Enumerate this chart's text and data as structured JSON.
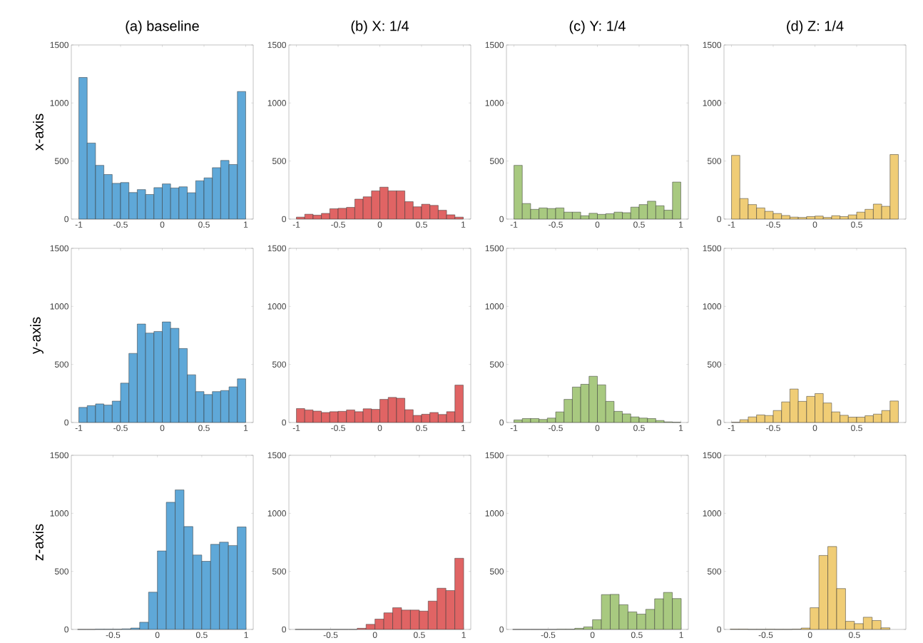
{
  "chart_data": [
    {
      "type": "histogram",
      "title": "(a) baseline",
      "ylabel": "x-axis",
      "color": "#5fa8d8",
      "bins": [
        -1,
        -0.9,
        -0.8,
        -0.7,
        -0.6,
        -0.5,
        -0.4,
        -0.3,
        -0.2,
        -0.1,
        0,
        0.1,
        0.2,
        0.3,
        0.4,
        0.5,
        0.6,
        0.7,
        0.8,
        0.9,
        1
      ],
      "values": [
        1220,
        655,
        463,
        384,
        308,
        315,
        229,
        254,
        212,
        271,
        303,
        268,
        278,
        227,
        330,
        355,
        443,
        505,
        470,
        1099
      ],
      "xlim": [
        -1.09,
        1.09
      ],
      "ylim": [
        0,
        1500
      ],
      "xticks": [
        -1,
        -0.5,
        0,
        0.5,
        1
      ],
      "yticks": [
        0,
        500,
        1000,
        1500
      ]
    },
    {
      "type": "histogram",
      "title": "(b) X: 1/4",
      "color": "#e06464",
      "bins": [
        -1,
        -0.9,
        -0.8,
        -0.7,
        -0.6,
        -0.5,
        -0.4,
        -0.3,
        -0.2,
        -0.1,
        0,
        0.1,
        0.2,
        0.3,
        0.4,
        0.5,
        0.6,
        0.7,
        0.8,
        0.9,
        1
      ],
      "values": [
        17,
        42,
        34,
        49,
        89,
        93,
        101,
        172,
        192,
        243,
        275,
        243,
        243,
        150,
        106,
        128,
        118,
        76,
        37,
        17
      ],
      "xlim": [
        -1.09,
        1.09
      ],
      "ylim": [
        0,
        1500
      ],
      "xticks": [
        -1,
        -0.5,
        0,
        0.5,
        1
      ],
      "yticks": [
        0,
        500,
        1000,
        1500
      ]
    },
    {
      "type": "histogram",
      "title": "(c) Y: 1/4",
      "color": "#a8c980",
      "bins": [
        -1,
        -0.9,
        -0.8,
        -0.7,
        -0.6,
        -0.5,
        -0.4,
        -0.3,
        -0.2,
        -0.1,
        0,
        0.1,
        0.2,
        0.3,
        0.4,
        0.5,
        0.6,
        0.7,
        0.8,
        0.9,
        1
      ],
      "values": [
        463,
        134,
        84,
        96,
        91,
        96,
        60,
        60,
        29,
        50,
        41,
        46,
        60,
        55,
        103,
        125,
        154,
        115,
        77,
        319
      ],
      "xlim": [
        -1.09,
        1.09
      ],
      "ylim": [
        0,
        1500
      ],
      "xticks": [
        -1,
        -0.5,
        0,
        0.5,
        1
      ],
      "yticks": [
        0,
        500,
        1000,
        1500
      ]
    },
    {
      "type": "histogram",
      "title": "(d) Z: 1/4",
      "color": "#f0cd76",
      "bins": [
        -1,
        -0.9,
        -0.8,
        -0.7,
        -0.6,
        -0.5,
        -0.4,
        -0.3,
        -0.2,
        -0.1,
        0,
        0.1,
        0.2,
        0.3,
        0.4,
        0.5,
        0.6,
        0.7,
        0.8,
        0.9,
        1
      ],
      "values": [
        549,
        177,
        125,
        96,
        67,
        48,
        31,
        17,
        14,
        22,
        26,
        14,
        29,
        22,
        36,
        60,
        84,
        129,
        110,
        556
      ],
      "xlim": [
        -1.09,
        1.09
      ],
      "ylim": [
        0,
        1500
      ],
      "xticks": [
        -1,
        -0.5,
        0,
        0.5
      ],
      "yticks": [
        0,
        500,
        1000,
        1500
      ]
    },
    {
      "type": "histogram",
      "ylabel": "y-axis",
      "color": "#5fa8d8",
      "bins": [
        -1,
        -0.9,
        -0.8,
        -0.7,
        -0.6,
        -0.5,
        -0.4,
        -0.3,
        -0.2,
        -0.1,
        0,
        0.1,
        0.2,
        0.3,
        0.4,
        0.5,
        0.6,
        0.7,
        0.8,
        0.9,
        1
      ],
      "values": [
        130,
        145,
        160,
        150,
        184,
        339,
        595,
        848,
        770,
        784,
        866,
        811,
        637,
        411,
        266,
        241,
        266,
        275,
        307,
        376
      ],
      "xlim": [
        -1.09,
        1.09
      ],
      "ylim": [
        0,
        1500
      ],
      "xticks": [
        -1,
        -0.5,
        0,
        0.5,
        1
      ],
      "yticks": [
        0,
        500,
        1000,
        1500
      ]
    },
    {
      "type": "histogram",
      "color": "#e06464",
      "bins": [
        -1,
        -0.9,
        -0.8,
        -0.7,
        -0.6,
        -0.5,
        -0.4,
        -0.3,
        -0.2,
        -0.1,
        0,
        0.1,
        0.2,
        0.3,
        0.4,
        0.5,
        0.6,
        0.7,
        0.8,
        0.9,
        1
      ],
      "values": [
        120,
        108,
        98,
        86,
        93,
        96,
        108,
        93,
        118,
        113,
        199,
        216,
        209,
        110,
        61,
        71,
        86,
        69,
        93,
        322
      ],
      "xlim": [
        -1.09,
        1.09
      ],
      "ylim": [
        0,
        1500
      ],
      "xticks": [
        -1,
        -0.5,
        0,
        0.5,
        1
      ],
      "yticks": [
        0,
        500,
        1000,
        1500
      ]
    },
    {
      "type": "histogram",
      "color": "#a8c980",
      "bins": [
        -1,
        -0.9,
        -0.8,
        -0.7,
        -0.6,
        -0.5,
        -0.4,
        -0.3,
        -0.2,
        -0.1,
        0,
        0.1,
        0.2,
        0.3,
        0.4,
        0.5,
        0.6,
        0.7,
        0.8,
        0.9,
        1
      ],
      "values": [
        22,
        34,
        34,
        26,
        38,
        91,
        199,
        305,
        329,
        398,
        324,
        182,
        96,
        74,
        48,
        38,
        34,
        17,
        5,
        2
      ],
      "xlim": [
        -1.09,
        1.09
      ],
      "ylim": [
        0,
        1500
      ],
      "xticks": [
        -1,
        -0.5,
        0,
        0.5,
        1
      ],
      "yticks": [
        0,
        500,
        1000,
        1500
      ]
    },
    {
      "type": "histogram",
      "color": "#f0cd76",
      "bins": [
        -1,
        -0.9,
        -0.8,
        -0.7,
        -0.6,
        -0.5,
        -0.4,
        -0.3,
        -0.2,
        -0.1,
        0,
        0.1,
        0.2,
        0.3,
        0.4,
        0.5,
        0.6,
        0.7,
        0.8,
        0.9,
        1
      ],
      "values": [
        2,
        24,
        48,
        65,
        60,
        103,
        177,
        288,
        182,
        225,
        249,
        168,
        91,
        62,
        46,
        46,
        58,
        72,
        103,
        185
      ],
      "xlim": [
        -1.09,
        1.09
      ],
      "ylim": [
        0,
        1500
      ],
      "xticks": [
        -1,
        -0.5,
        0,
        0.5
      ],
      "yticks": [
        0,
        500,
        1000,
        1500
      ]
    },
    {
      "type": "histogram",
      "ylabel": "z-axis",
      "color": "#5fa8d8",
      "bins": [
        -0.9,
        -0.8,
        -0.7,
        -0.6,
        -0.5,
        -0.4,
        -0.3,
        -0.2,
        -0.1,
        0,
        0.1,
        0.2,
        0.3,
        0.4,
        0.5,
        0.6,
        0.7,
        0.8,
        0.9,
        1
      ],
      "values": [
        0,
        0,
        2,
        2,
        2,
        5,
        12,
        62,
        321,
        676,
        1095,
        1202,
        886,
        641,
        587,
        733,
        752,
        723,
        883
      ],
      "xlim": [
        -0.97,
        1.08
      ],
      "ylim": [
        0,
        1500
      ],
      "xticks": [
        -0.5,
        0,
        0.5,
        1
      ],
      "yticks": [
        0,
        500,
        1000,
        1500
      ]
    },
    {
      "type": "histogram",
      "color": "#e06464",
      "bins": [
        -0.9,
        -0.8,
        -0.7,
        -0.6,
        -0.5,
        -0.4,
        -0.3,
        -0.2,
        -0.1,
        0,
        0.1,
        0.2,
        0.3,
        0.4,
        0.5,
        0.6,
        0.7,
        0.8,
        0.9,
        1
      ],
      "values": [
        0,
        0,
        0,
        0,
        0,
        0,
        0,
        10,
        44,
        89,
        143,
        187,
        167,
        167,
        158,
        244,
        355,
        335,
        613
      ],
      "xlim": [
        -0.97,
        1.08
      ],
      "ylim": [
        0,
        1500
      ],
      "xticks": [
        -0.5,
        0,
        0.5,
        1
      ],
      "yticks": [
        0,
        500,
        1000,
        1500
      ]
    },
    {
      "type": "histogram",
      "color": "#a8c980",
      "bins": [
        -0.9,
        -0.8,
        -0.7,
        -0.6,
        -0.5,
        -0.4,
        -0.3,
        -0.2,
        -0.1,
        0,
        0.1,
        0.2,
        0.3,
        0.4,
        0.5,
        0.6,
        0.7,
        0.8,
        0.9,
        1
      ],
      "values": [
        0,
        0,
        0,
        0,
        0,
        2,
        2,
        10,
        22,
        84,
        300,
        302,
        213,
        151,
        132,
        173,
        264,
        319,
        266
      ],
      "xlim": [
        -0.97,
        1.08
      ],
      "ylim": [
        0,
        1500
      ],
      "xticks": [
        -0.5,
        0,
        0.5,
        1
      ],
      "yticks": [
        0,
        500,
        1000,
        1500
      ]
    },
    {
      "type": "histogram",
      "color": "#f0cd76",
      "bins": [
        -0.9,
        -0.8,
        -0.7,
        -0.6,
        -0.5,
        -0.4,
        -0.3,
        -0.2,
        -0.1,
        0,
        0.1,
        0.2,
        0.3,
        0.4,
        0.5,
        0.6,
        0.7,
        0.8,
        0.9,
        1
      ],
      "values": [
        3,
        3,
        1,
        1,
        2,
        1,
        1,
        3,
        12,
        187,
        637,
        714,
        352,
        70,
        50,
        105,
        77,
        14,
        null
      ],
      "xlim": [
        -0.97,
        1.08
      ],
      "ylim": [
        0,
        1500
      ],
      "xticks": [
        -0.5,
        0,
        0.5
      ],
      "yticks": [
        0,
        500,
        1000,
        1500
      ]
    }
  ]
}
